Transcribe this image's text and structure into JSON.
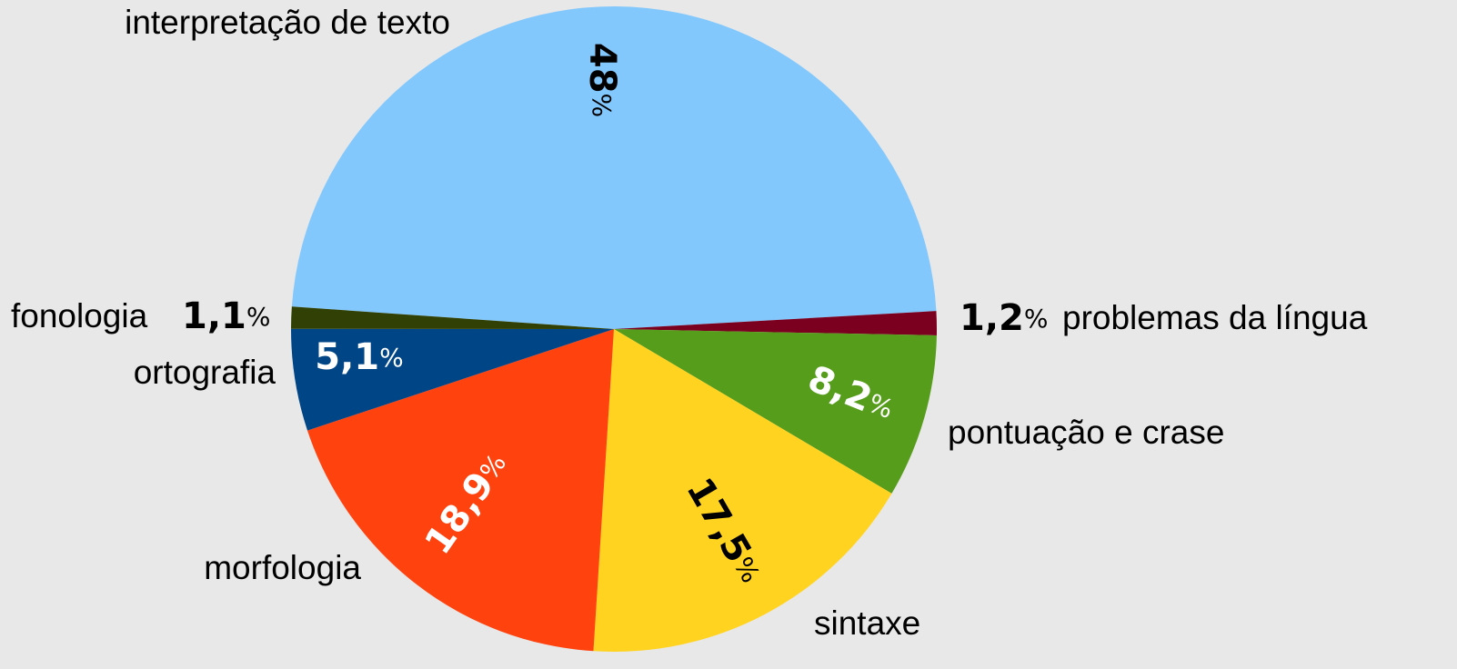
{
  "chart_data": {
    "type": "pie",
    "categories": [
      "interpretação de texto",
      "problemas da língua",
      "pontuação e crase",
      "sintaxe",
      "morfologia",
      "ortografia",
      "fonologia"
    ],
    "values": [
      48,
      1.2,
      8.2,
      17.5,
      18.9,
      5.1,
      1.1
    ],
    "value_labels": [
      "48%",
      "1,2%",
      "8,2%",
      "17,5%",
      "18,9%",
      "5,1%",
      "1,1%"
    ],
    "colors": [
      "#83c8fc",
      "#7b0020",
      "#579d1c",
      "#ffd320",
      "#ff420e",
      "#004586",
      "#314004"
    ]
  }
}
